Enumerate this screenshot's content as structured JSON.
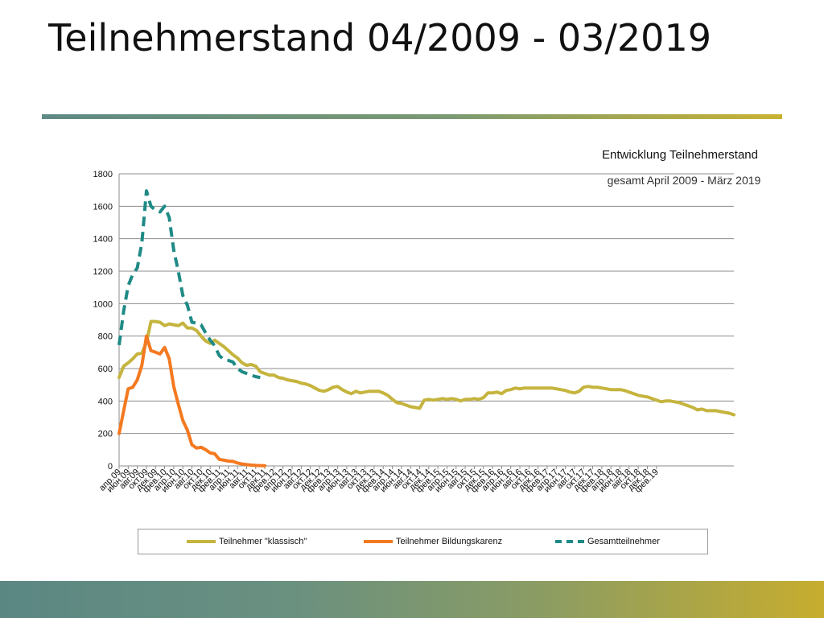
{
  "slide": {
    "title": "Teilnehmerstand 04/2009 - 03/2019"
  },
  "colors": {
    "klassisch": "#c5b43e",
    "bildungskarenz": "#f47920",
    "gesamt": "#1f8a86",
    "grid": "#8c8c8c"
  },
  "chart_data": {
    "type": "line",
    "title": "Entwicklung Teilnehmerstand",
    "subtitle": "gesamt April 2009 - März 2019",
    "xlabel": "",
    "ylabel": "",
    "ylim": [
      0,
      1800
    ],
    "yticks": [
      0,
      200,
      400,
      600,
      800,
      1000,
      1200,
      1400,
      1600,
      1800
    ],
    "grid": true,
    "legend_position": "bottom",
    "x_tick_labels": [
      "апр.09",
      "июн.09",
      "авг.09",
      "окт.09",
      "дек.09",
      "фев.10",
      "апр.10",
      "июн.10",
      "авг.10",
      "окт.10",
      "дек.10",
      "фев.11",
      "апр.11",
      "июн.11",
      "авг.11",
      "окт.11",
      "дек.11",
      "фев.12",
      "апр.12",
      "июн.12",
      "авг.12",
      "окт.12",
      "дек.12",
      "фев.13",
      "апр.13",
      "июн.13",
      "авг.13",
      "окт.13",
      "дек.13",
      "фев.14",
      "апр.14",
      "июн.14",
      "авг.14",
      "окт.14",
      "дек.14",
      "фев.15",
      "апр.15",
      "июн.15",
      "авг.15",
      "окт.15",
      "дек.15",
      "фев.16",
      "апр.16",
      "июн.16",
      "авг.16",
      "окт.16",
      "дек.16",
      "фев.17",
      "апр.17",
      "июн.17",
      "авг.17",
      "окт.17",
      "дек.17",
      "фев.18",
      "апр.18",
      "июн.18",
      "авг.18",
      "окт.18",
      "дек.18",
      "фев.19"
    ],
    "series": [
      {
        "name": "Teilnehmer \"klassisch\"",
        "style": "solid",
        "values": [
          545,
          615,
          635,
          660,
          690,
          695,
          760,
          890,
          890,
          885,
          865,
          875,
          870,
          865,
          880,
          850,
          850,
          835,
          800,
          770,
          755,
          775,
          755,
          735,
          710,
          685,
          665,
          635,
          620,
          625,
          615,
          580,
          570,
          560,
          560,
          545,
          540,
          530,
          525,
          520,
          510,
          505,
          495,
          480,
          465,
          460,
          470,
          485,
          490,
          470,
          455,
          445,
          460,
          450,
          455,
          460,
          460,
          460,
          450,
          435,
          410,
          390,
          385,
          375,
          365,
          360,
          355,
          405,
          410,
          405,
          410,
          415,
          410,
          415,
          410,
          400,
          410,
          410,
          415,
          410,
          420,
          450,
          450,
          455,
          445,
          465,
          470,
          480,
          475,
          480,
          480,
          480,
          480,
          480,
          480,
          480,
          475,
          470,
          465,
          455,
          450,
          460,
          485,
          490,
          485,
          485,
          480,
          475,
          470,
          470,
          470,
          465,
          455,
          445,
          435,
          430,
          425,
          415,
          405,
          395,
          400,
          400,
          395,
          390,
          380,
          370,
          360,
          345,
          350,
          340,
          340,
          340,
          335,
          330,
          325,
          315
        ]
      },
      {
        "name": "Teilnehmer Bildungskarenz",
        "style": "solid",
        "values": [
          200,
          340,
          475,
          485,
          530,
          620,
          800,
          710,
          700,
          690,
          730,
          660,
          490,
          380,
          280,
          220,
          130,
          110,
          115,
          100,
          80,
          75,
          40,
          35,
          30,
          28,
          18,
          12,
          8,
          5,
          3,
          2,
          1
        ]
      },
      {
        "name": "Gesamtteilnehmer",
        "style": "dashed",
        "values": [
          745,
          955,
          1110,
          1180,
          1220,
          1375,
          1695,
          1600,
          1575,
          1565,
          1600,
          1530,
          1330,
          1200,
          1050,
          990,
          885,
          880,
          870,
          820,
          775,
          740,
          680,
          655,
          650,
          640,
          600,
          580,
          570,
          560,
          550,
          545
        ]
      }
    ]
  }
}
